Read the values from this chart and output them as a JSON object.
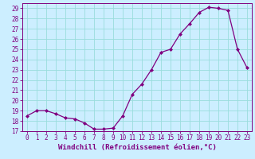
{
  "x": [
    0,
    1,
    2,
    3,
    4,
    5,
    6,
    7,
    8,
    9,
    10,
    11,
    12,
    13,
    14,
    15,
    16,
    17,
    18,
    19,
    20,
    21,
    22,
    23
  ],
  "y": [
    18.5,
    19.0,
    19.0,
    18.7,
    18.3,
    18.2,
    17.8,
    17.2,
    17.2,
    17.3,
    18.5,
    20.6,
    21.6,
    23.0,
    24.7,
    25.0,
    26.5,
    27.5,
    28.6,
    29.1,
    29.0,
    28.8,
    25.0,
    23.2
  ],
  "line_color": "#800080",
  "marker_color": "#800080",
  "bg_color": "#cceeff",
  "grid_color": "#99dddd",
  "xlabel": "Windchill (Refroidissement éolien,°C)",
  "xlim": [
    -0.5,
    23.5
  ],
  "ylim": [
    17,
    29.5
  ],
  "yticks": [
    17,
    18,
    19,
    20,
    21,
    22,
    23,
    24,
    25,
    26,
    27,
    28,
    29
  ],
  "xticks": [
    0,
    1,
    2,
    3,
    4,
    5,
    6,
    7,
    8,
    9,
    10,
    11,
    12,
    13,
    14,
    15,
    16,
    17,
    18,
    19,
    20,
    21,
    22,
    23
  ],
  "font_color": "#800080",
  "tick_fontsize": 5.5,
  "label_fontsize": 6.5
}
